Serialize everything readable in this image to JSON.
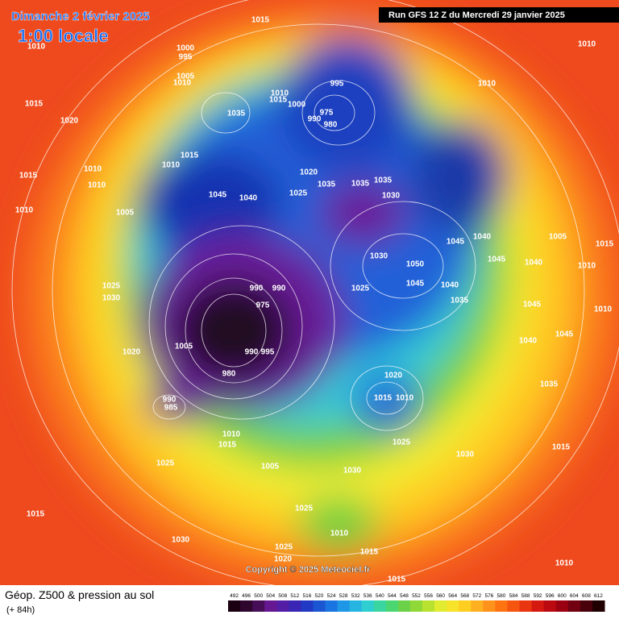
{
  "header": {
    "date": "Dimanche 2 février 2025",
    "time": "1:00 locale",
    "run": "Run GFS 12 Z du Mercredi 29 janvier 2025"
  },
  "footer": {
    "title": "Géop. Z500 & pression au sol",
    "lead": "(+ 84h)",
    "copyright": "Copyright © 2025 Meteociel.fr"
  },
  "legend": {
    "ticks": [
      492,
      496,
      500,
      504,
      508,
      512,
      516,
      520,
      524,
      528,
      532,
      536,
      540,
      544,
      548,
      552,
      556,
      560,
      564,
      568,
      572,
      576,
      580,
      584,
      588,
      592,
      596,
      600,
      604,
      608,
      612
    ]
  },
  "map": {
    "isobar_labels": [
      1015,
      1010,
      1000,
      995,
      1005,
      1010,
      1015,
      1020,
      1035,
      1010,
      1015,
      1000,
      995,
      975,
      990,
      980,
      1010,
      1010,
      1015,
      1010,
      1015,
      1010,
      1010,
      1010,
      1005,
      1045,
      1040,
      1020,
      1025,
      1035,
      1035,
      1030,
      1035,
      1030,
      1050,
      1045,
      1040,
      1045,
      1040,
      1045,
      1040,
      1005,
      1015,
      1010,
      1035,
      1045,
      1010,
      1025,
      1030,
      990,
      990,
      975,
      1020,
      1005,
      990,
      995,
      980,
      1025,
      1020,
      1015,
      1010,
      990,
      985,
      1010,
      1015,
      1005,
      1025,
      1030,
      1030,
      1015,
      1035,
      1040,
      1045,
      1025,
      1015,
      1030,
      1025,
      1010,
      1025,
      1020,
      1015,
      1015,
      1010
    ]
  }
}
